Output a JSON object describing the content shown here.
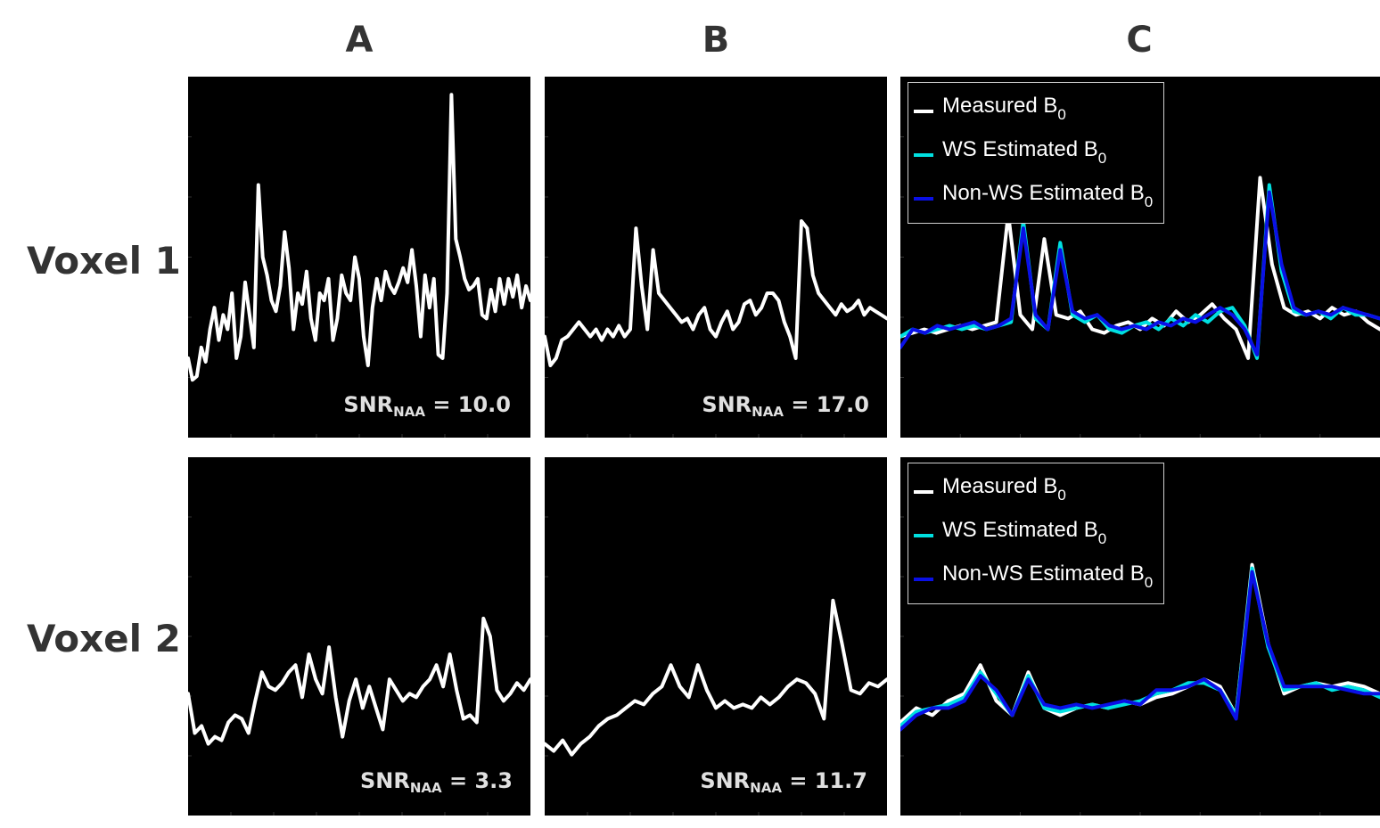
{
  "columns": [
    "A",
    "B",
    "C"
  ],
  "rows": [
    "Voxel 1",
    "Voxel 2"
  ],
  "colors": {
    "measured": "#ffffff",
    "ws": "#00e0e0",
    "nonws": "#0a10e6",
    "background": "#000000"
  },
  "legend": {
    "measured": {
      "text": "Measured B",
      "sub": "0"
    },
    "ws": {
      "text": "WS Estimated B",
      "sub": "0"
    },
    "nonws": {
      "text": "Non-WS Estimated B",
      "sub": "0"
    }
  },
  "snr": {
    "v1A": {
      "label": "SNR",
      "sub": "NAA",
      "value": "= 10.0"
    },
    "v1B": {
      "label": "SNR",
      "sub": "NAA",
      "value": "= 17.0"
    },
    "v2A": {
      "label": "SNR",
      "sub": "NAA",
      "value": "= 3.3"
    },
    "v2B": {
      "label": "SNR",
      "sub": "NAA",
      "value": "= 11.7"
    }
  },
  "chart_data": [
    {
      "panel": "v1A",
      "type": "line",
      "series": [
        {
          "values": [
            0.22,
            0.16,
            0.17,
            0.25,
            0.21,
            0.3,
            0.36,
            0.27,
            0.34,
            0.3,
            0.4,
            0.22,
            0.28,
            0.43,
            0.34,
            0.25,
            0.7,
            0.5,
            0.45,
            0.38,
            0.35,
            0.42,
            0.57,
            0.47,
            0.3,
            0.4,
            0.37,
            0.46,
            0.33,
            0.27,
            0.4,
            0.38,
            0.44,
            0.27,
            0.33,
            0.45,
            0.4,
            0.38,
            0.5,
            0.44,
            0.28,
            0.2,
            0.36,
            0.44,
            0.38,
            0.46,
            0.42,
            0.4,
            0.43,
            0.47,
            0.43,
            0.52,
            0.42,
            0.28,
            0.45,
            0.36,
            0.44,
            0.23,
            0.22,
            0.4,
            0.95,
            0.55,
            0.5,
            0.44,
            0.41,
            0.42,
            0.44,
            0.34,
            0.33,
            0.41,
            0.35,
            0.44,
            0.37,
            0.44,
            0.39,
            0.45,
            0.36,
            0.42,
            0.38
          ]
        }
      ]
    },
    {
      "panel": "v1B",
      "type": "line",
      "series": [
        {
          "values": [
            0.28,
            0.2,
            0.22,
            0.27,
            0.28,
            0.3,
            0.32,
            0.3,
            0.28,
            0.3,
            0.27,
            0.3,
            0.28,
            0.31,
            0.28,
            0.3,
            0.58,
            0.42,
            0.3,
            0.52,
            0.4,
            0.38,
            0.36,
            0.34,
            0.32,
            0.33,
            0.3,
            0.34,
            0.36,
            0.3,
            0.28,
            0.32,
            0.35,
            0.3,
            0.32,
            0.37,
            0.38,
            0.34,
            0.36,
            0.4,
            0.4,
            0.38,
            0.32,
            0.28,
            0.22,
            0.6,
            0.58,
            0.45,
            0.4,
            0.38,
            0.36,
            0.34,
            0.37,
            0.35,
            0.36,
            0.38,
            0.34,
            0.36,
            0.35,
            0.34,
            0.33
          ]
        }
      ]
    },
    {
      "panel": "v1C",
      "type": "line",
      "series": [
        {
          "name": "Measured B0",
          "values": [
            0.28,
            0.29,
            0.3,
            0.29,
            0.3,
            0.31,
            0.3,
            0.31,
            0.32,
            0.62,
            0.34,
            0.3,
            0.55,
            0.34,
            0.33,
            0.35,
            0.3,
            0.29,
            0.31,
            0.32,
            0.3,
            0.33,
            0.31,
            0.35,
            0.32,
            0.34,
            0.37,
            0.33,
            0.3,
            0.22,
            0.72,
            0.48,
            0.36,
            0.34,
            0.35,
            0.33,
            0.36,
            0.34,
            0.35,
            0.32,
            0.3
          ]
        },
        {
          "name": "WS Estimated B0",
          "values": [
            0.28,
            0.3,
            0.29,
            0.3,
            0.31,
            0.3,
            0.31,
            0.3,
            0.31,
            0.32,
            0.6,
            0.33,
            0.3,
            0.54,
            0.34,
            0.32,
            0.34,
            0.3,
            0.29,
            0.31,
            0.32,
            0.3,
            0.33,
            0.31,
            0.34,
            0.32,
            0.35,
            0.36,
            0.31,
            0.22,
            0.7,
            0.46,
            0.35,
            0.34,
            0.35,
            0.33,
            0.36,
            0.34,
            0.34,
            0.33
          ]
        },
        {
          "name": "Non-WS Estimated B0",
          "values": [
            0.25,
            0.3,
            0.29,
            0.31,
            0.3,
            0.31,
            0.32,
            0.3,
            0.31,
            0.33,
            0.58,
            0.34,
            0.3,
            0.52,
            0.35,
            0.33,
            0.34,
            0.31,
            0.3,
            0.31,
            0.3,
            0.32,
            0.31,
            0.33,
            0.32,
            0.34,
            0.36,
            0.34,
            0.3,
            0.23,
            0.68,
            0.48,
            0.36,
            0.34,
            0.35,
            0.34,
            0.36,
            0.35,
            0.34,
            0.33
          ]
        }
      ]
    },
    {
      "panel": "v2A",
      "type": "line",
      "series": [
        {
          "values": [
            0.34,
            0.23,
            0.25,
            0.2,
            0.22,
            0.21,
            0.26,
            0.28,
            0.27,
            0.23,
            0.32,
            0.4,
            0.36,
            0.35,
            0.37,
            0.4,
            0.42,
            0.33,
            0.45,
            0.38,
            0.34,
            0.47,
            0.33,
            0.22,
            0.32,
            0.38,
            0.3,
            0.36,
            0.3,
            0.24,
            0.38,
            0.35,
            0.32,
            0.34,
            0.33,
            0.36,
            0.38,
            0.42,
            0.36,
            0.45,
            0.35,
            0.27,
            0.28,
            0.26,
            0.55,
            0.5,
            0.35,
            0.32,
            0.34,
            0.37,
            0.35,
            0.38
          ]
        }
      ]
    },
    {
      "panel": "v2B",
      "type": "line",
      "series": [
        {
          "values": [
            0.2,
            0.18,
            0.21,
            0.17,
            0.2,
            0.22,
            0.25,
            0.27,
            0.28,
            0.3,
            0.32,
            0.31,
            0.34,
            0.36,
            0.42,
            0.36,
            0.33,
            0.42,
            0.35,
            0.3,
            0.32,
            0.3,
            0.31,
            0.3,
            0.33,
            0.31,
            0.33,
            0.36,
            0.38,
            0.37,
            0.34,
            0.27,
            0.6,
            0.48,
            0.35,
            0.34,
            0.37,
            0.36,
            0.38
          ]
        }
      ]
    },
    {
      "panel": "v2C",
      "type": "line",
      "series": [
        {
          "name": "Measured B0",
          "values": [
            0.26,
            0.3,
            0.28,
            0.32,
            0.34,
            0.42,
            0.32,
            0.28,
            0.4,
            0.3,
            0.28,
            0.3,
            0.31,
            0.3,
            0.32,
            0.31,
            0.33,
            0.34,
            0.36,
            0.38,
            0.36,
            0.28,
            0.7,
            0.48,
            0.34,
            0.36,
            0.37,
            0.36,
            0.37,
            0.36,
            0.34
          ]
        },
        {
          "name": "WS Estimated B0",
          "values": [
            0.25,
            0.29,
            0.3,
            0.31,
            0.33,
            0.4,
            0.34,
            0.28,
            0.39,
            0.3,
            0.29,
            0.3,
            0.31,
            0.3,
            0.31,
            0.32,
            0.34,
            0.35,
            0.37,
            0.37,
            0.35,
            0.28,
            0.69,
            0.47,
            0.35,
            0.36,
            0.37,
            0.35,
            0.36,
            0.35,
            0.33
          ]
        },
        {
          "name": "Non-WS Estimated B0",
          "values": [
            0.24,
            0.28,
            0.3,
            0.3,
            0.32,
            0.39,
            0.35,
            0.28,
            0.38,
            0.31,
            0.3,
            0.31,
            0.3,
            0.31,
            0.32,
            0.31,
            0.35,
            0.35,
            0.36,
            0.38,
            0.35,
            0.27,
            0.68,
            0.48,
            0.36,
            0.36,
            0.36,
            0.36,
            0.35,
            0.34,
            0.34
          ]
        }
      ]
    }
  ]
}
